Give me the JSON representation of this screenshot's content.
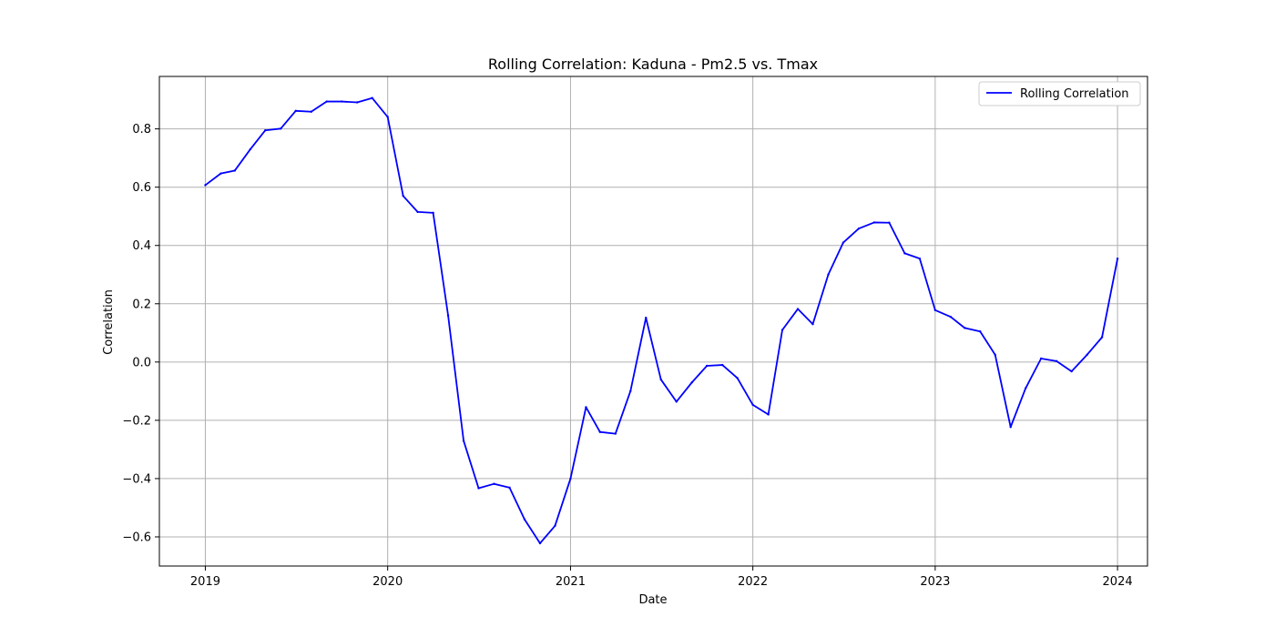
{
  "chart_data": {
    "type": "line",
    "title": "Rolling Correlation: Kaduna - Pm2.5 vs. Tmax",
    "xlabel": "Date",
    "ylabel": "Correlation",
    "xlim": [
      "2018-10-01",
      "2024-03-01"
    ],
    "ylim": [
      -0.7,
      0.98
    ],
    "x_ticks": [
      "2019",
      "2020",
      "2021",
      "2022",
      "2023",
      "2024"
    ],
    "y_ticks": [
      "−0.6",
      "−0.4",
      "−0.2",
      "0.0",
      "0.2",
      "0.4",
      "0.6",
      "0.8"
    ],
    "grid": true,
    "legend_position": "top-right",
    "line_color": "#0000ff",
    "series": [
      {
        "name": "Rolling Correlation",
        "x": [
          "2019-01",
          "2019-02",
          "2019-03",
          "2019-04",
          "2019-05",
          "2019-06",
          "2019-07",
          "2019-08",
          "2019-09",
          "2019-10",
          "2019-11",
          "2019-12",
          "2020-01",
          "2020-02",
          "2020-03",
          "2020-04",
          "2020-05",
          "2020-06",
          "2020-07",
          "2020-08",
          "2020-09",
          "2020-10",
          "2020-11",
          "2020-12",
          "2021-01",
          "2021-02",
          "2021-03",
          "2021-04",
          "2021-05",
          "2021-06",
          "2021-07",
          "2021-08",
          "2021-09",
          "2021-10",
          "2021-11",
          "2021-12",
          "2022-01",
          "2022-02",
          "2022-03",
          "2022-04",
          "2022-05",
          "2022-06",
          "2022-07",
          "2022-08",
          "2022-09",
          "2022-10",
          "2022-11",
          "2022-12",
          "2023-01",
          "2023-02",
          "2023-03",
          "2023-04",
          "2023-05",
          "2023-06",
          "2023-07",
          "2023-08",
          "2023-09",
          "2023-10",
          "2023-11",
          "2023-12",
          "2024-01"
        ],
        "values": [
          0.607,
          0.647,
          0.657,
          0.73,
          0.795,
          0.801,
          0.862,
          0.859,
          0.894,
          0.894,
          0.891,
          0.906,
          0.841,
          0.57,
          0.515,
          0.512,
          0.16,
          -0.27,
          -0.433,
          -0.418,
          -0.431,
          -0.54,
          -0.622,
          -0.562,
          -0.4,
          -0.155,
          -0.24,
          -0.246,
          -0.1,
          0.152,
          -0.06,
          -0.136,
          -0.07,
          -0.013,
          -0.01,
          -0.055,
          -0.147,
          -0.18,
          0.11,
          0.182,
          0.13,
          0.3,
          0.41,
          0.458,
          0.479,
          0.478,
          0.373,
          0.355,
          0.178,
          0.155,
          0.117,
          0.105,
          0.025,
          -0.223,
          -0.09,
          0.012,
          0.003,
          -0.032,
          0.025,
          0.085,
          0.355
        ]
      }
    ]
  }
}
